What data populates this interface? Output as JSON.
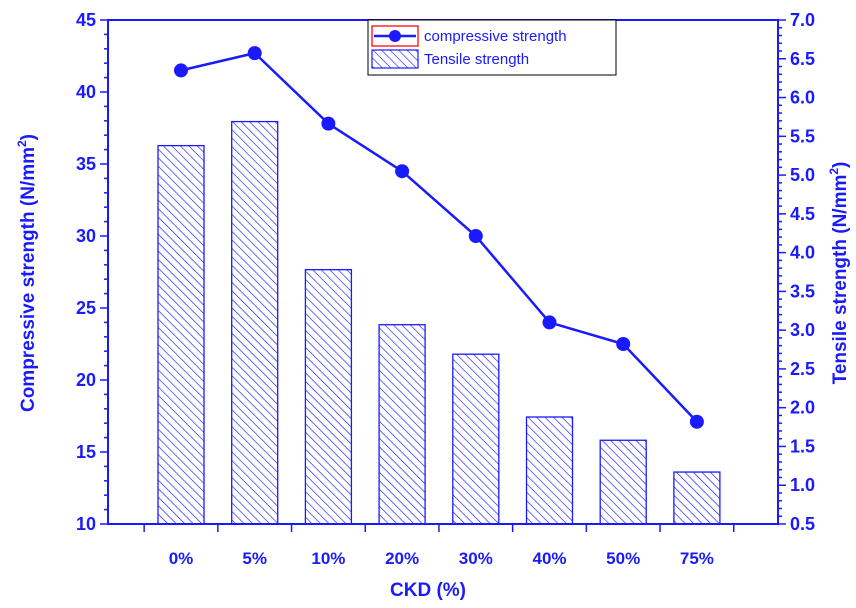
{
  "chart_data": {
    "type": "bar+line",
    "categories": [
      "0%",
      "5%",
      "10%",
      "20%",
      "30%",
      "40%",
      "50%",
      "75%"
    ],
    "xlabel": "CKD (%)",
    "ylabel_left": "Compressive strength (N/mm",
    "ylabel_left_sup": "2",
    "ylabel_left_close": ")",
    "ylabel_right": "Tensile strength (N/mm",
    "ylabel_right_sup": "2",
    "ylabel_right_close": ")",
    "ylim_left": [
      10,
      45
    ],
    "ylim_right": [
      0.5,
      7.0
    ],
    "yticks_left": [
      "10",
      "15",
      "20",
      "25",
      "30",
      "35",
      "40",
      "45"
    ],
    "yticks_right": [
      "0.5",
      "1.0",
      "1.5",
      "2.0",
      "2.5",
      "3.0",
      "3.5",
      "4.0",
      "4.5",
      "5.0",
      "5.5",
      "6.0",
      "6.5",
      "7.0"
    ],
    "series": [
      {
        "name": "compressive strength",
        "type": "line",
        "axis": "left",
        "values": [
          41.5,
          42.7,
          37.8,
          34.5,
          30.0,
          24.0,
          22.5,
          17.1
        ]
      },
      {
        "name": "Tensile strength",
        "type": "bar",
        "axis": "right",
        "values": [
          5.38,
          5.69,
          3.78,
          3.07,
          2.69,
          1.88,
          1.58,
          1.17
        ]
      }
    ],
    "legend_position": "top-center",
    "grid": false
  },
  "colors": {
    "axis": "#1a1aff",
    "line": "#1a1aff",
    "bar_hatch": "#1a1aff",
    "legend_line_box": "#ff2a2a"
  }
}
